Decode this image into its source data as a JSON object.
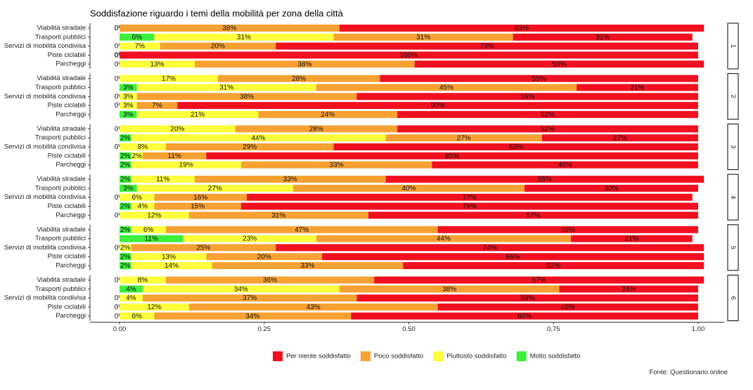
{
  "chart_data": {
    "type": "bar",
    "orientation": "horizontal",
    "stacked": true,
    "title": "Soddisfazione riguardo i temi della mobilità per zona della città",
    "caption": "Fonte: Questionario online",
    "xlim": [
      0,
      1
    ],
    "xticks": [
      {
        "value": 0,
        "label": "0.00"
      },
      {
        "value": 0.25,
        "label": "0.25"
      },
      {
        "value": 0.5,
        "label": "0.50"
      },
      {
        "value": 0.75,
        "label": "0.75"
      },
      {
        "value": 1,
        "label": "1.00"
      }
    ],
    "legend_position": "bottom",
    "series": [
      {
        "name": "Per niente soddisfatto",
        "color": "#f01020"
      },
      {
        "name": "Poco soddisfatto",
        "color": "#f7a133"
      },
      {
        "name": "Piuttosto soddisfatto",
        "color": "#ffff3c"
      },
      {
        "name": "Molto soddisfatto",
        "color": "#3cf03c"
      }
    ],
    "facets": [
      {
        "label": "1",
        "categories": [
          "Viabilità stradale",
          "Trasporti pubblici",
          "Servizi di mobilità condivisa",
          "Piste ciclabili",
          "Parcheggi"
        ],
        "series": [
          {
            "values": [
              0.63,
              0.31,
              0.73,
              1.0,
              0.5
            ],
            "value_labels": [
              "63%",
              "31%",
              "73%",
              "100%",
              "50%"
            ]
          },
          {
            "values": [
              0.38,
              0.31,
              0.2,
              0,
              0.38
            ],
            "value_labels": [
              "38%",
              "31%",
              "20%",
              "0%",
              "38%"
            ]
          },
          {
            "values": [
              0,
              0.31,
              0.07,
              0,
              0.13
            ],
            "value_labels": [
              "0%",
              "31%",
              "7%",
              "0%",
              "13%"
            ]
          },
          {
            "values": [
              0,
              0.06,
              0,
              0,
              0
            ],
            "value_labels": [
              "0%",
              "6%",
              "0%",
              "0%",
              "0%"
            ]
          }
        ]
      },
      {
        "label": "2",
        "categories": [
          "Viabilità stradale",
          "Trasporti pubblici",
          "Servizi di mobilità condivisa",
          "Piste ciclabili",
          "Parcheggi"
        ],
        "series": [
          {
            "values": [
              0.55,
              0.21,
              0.59,
              0.9,
              0.52
            ],
            "value_labels": [
              "55%",
              "21%",
              "59%",
              "90%",
              "52%"
            ]
          },
          {
            "values": [
              0.28,
              0.45,
              0.38,
              0.07,
              0.24
            ],
            "value_labels": [
              "28%",
              "45%",
              "38%",
              "7%",
              "24%"
            ]
          },
          {
            "values": [
              0.17,
              0.31,
              0.03,
              0.03,
              0.21
            ],
            "value_labels": [
              "17%",
              "31%",
              "3%",
              "3%",
              "21%"
            ]
          },
          {
            "values": [
              0,
              0.03,
              0,
              0,
              0.03
            ],
            "value_labels": [
              "0%",
              "3%",
              "0%",
              "0%",
              "3%"
            ]
          }
        ]
      },
      {
        "label": "3",
        "categories": [
          "Viabilità stradale",
          "Trasporti pubblici",
          "Servizi di mobilità condivisa",
          "Piste ciclabili",
          "Parcheggi"
        ],
        "series": [
          {
            "values": [
              0.52,
              0.27,
              0.63,
              0.85,
              0.46
            ],
            "value_labels": [
              "52%",
              "27%",
              "63%",
              "85%",
              "46%"
            ]
          },
          {
            "values": [
              0.28,
              0.27,
              0.29,
              0.11,
              0.33
            ],
            "value_labels": [
              "28%",
              "27%",
              "29%",
              "11%",
              "33%"
            ]
          },
          {
            "values": [
              0.2,
              0.44,
              0.08,
              0.02,
              0.19
            ],
            "value_labels": [
              "20%",
              "44%",
              "8%",
              "2%",
              "19%"
            ]
          },
          {
            "values": [
              0,
              0.02,
              0,
              0.02,
              0.02
            ],
            "value_labels": [
              "0%",
              "2%",
              "0%",
              "2%",
              "2%"
            ]
          }
        ]
      },
      {
        "label": "4",
        "categories": [
          "Viabilità stradale",
          "Trasporti pubblici",
          "Servizi di mobilità condivisa",
          "Piste ciclabili",
          "Parcheggi"
        ],
        "series": [
          {
            "values": [
              0.55,
              0.3,
              0.77,
              0.79,
              0.57
            ],
            "value_labels": [
              "55%",
              "30%",
              "77%",
              "79%",
              "57%"
            ]
          },
          {
            "values": [
              0.33,
              0.4,
              0.16,
              0.15,
              0.31
            ],
            "value_labels": [
              "33%",
              "40%",
              "16%",
              "15%",
              "31%"
            ]
          },
          {
            "values": [
              0.11,
              0.27,
              0.06,
              0.04,
              0.12
            ],
            "value_labels": [
              "11%",
              "27%",
              "6%",
              "4%",
              "12%"
            ]
          },
          {
            "values": [
              0.02,
              0.03,
              0,
              0.02,
              0
            ],
            "value_labels": [
              "2%",
              "3%",
              "0%",
              "2%",
              "0%"
            ]
          }
        ]
      },
      {
        "label": "5",
        "categories": [
          "Viabilità stradale",
          "Trasporti pubblici",
          "Servizi di mobilità condivisa",
          "Piste ciclabili",
          "Parcheggi"
        ],
        "series": [
          {
            "values": [
              0.45,
              0.21,
              0.74,
              0.66,
              0.52
            ],
            "value_labels": [
              "45%",
              "21%",
              "74%",
              "66%",
              "52%"
            ]
          },
          {
            "values": [
              0.47,
              0.44,
              0.25,
              0.2,
              0.33
            ],
            "value_labels": [
              "47%",
              "44%",
              "25%",
              "20%",
              "33%"
            ]
          },
          {
            "values": [
              0.06,
              0.23,
              0.02,
              0.13,
              0.14
            ],
            "value_labels": [
              "6%",
              "23%",
              "2%",
              "13%",
              "14%"
            ]
          },
          {
            "values": [
              0.02,
              0.11,
              0,
              0.02,
              0.02
            ],
            "value_labels": [
              "2%",
              "11%",
              "0%",
              "2%",
              "2%"
            ]
          }
        ]
      },
      {
        "label": "6",
        "categories": [
          "Viabilità stradale",
          "Trasporti pubblici",
          "Servizi di mobilità condivisa",
          "Piste ciclabili",
          "Parcheggi"
        ],
        "series": [
          {
            "values": [
              0.57,
              0.24,
              0.59,
              0.45,
              0.6
            ],
            "value_labels": [
              "57%",
              "24%",
              "59%",
              "45%",
              "60%"
            ]
          },
          {
            "values": [
              0.36,
              0.38,
              0.37,
              0.43,
              0.34
            ],
            "value_labels": [
              "36%",
              "38%",
              "37%",
              "43%",
              "34%"
            ]
          },
          {
            "values": [
              0.08,
              0.34,
              0.04,
              0.12,
              0.06
            ],
            "value_labels": [
              "8%",
              "34%",
              "4%",
              "12%",
              "6%"
            ]
          },
          {
            "values": [
              0,
              0.04,
              0,
              0,
              0
            ],
            "value_labels": [
              "0%",
              "4%",
              "0%",
              "0%",
              "0%"
            ]
          }
        ]
      }
    ]
  }
}
